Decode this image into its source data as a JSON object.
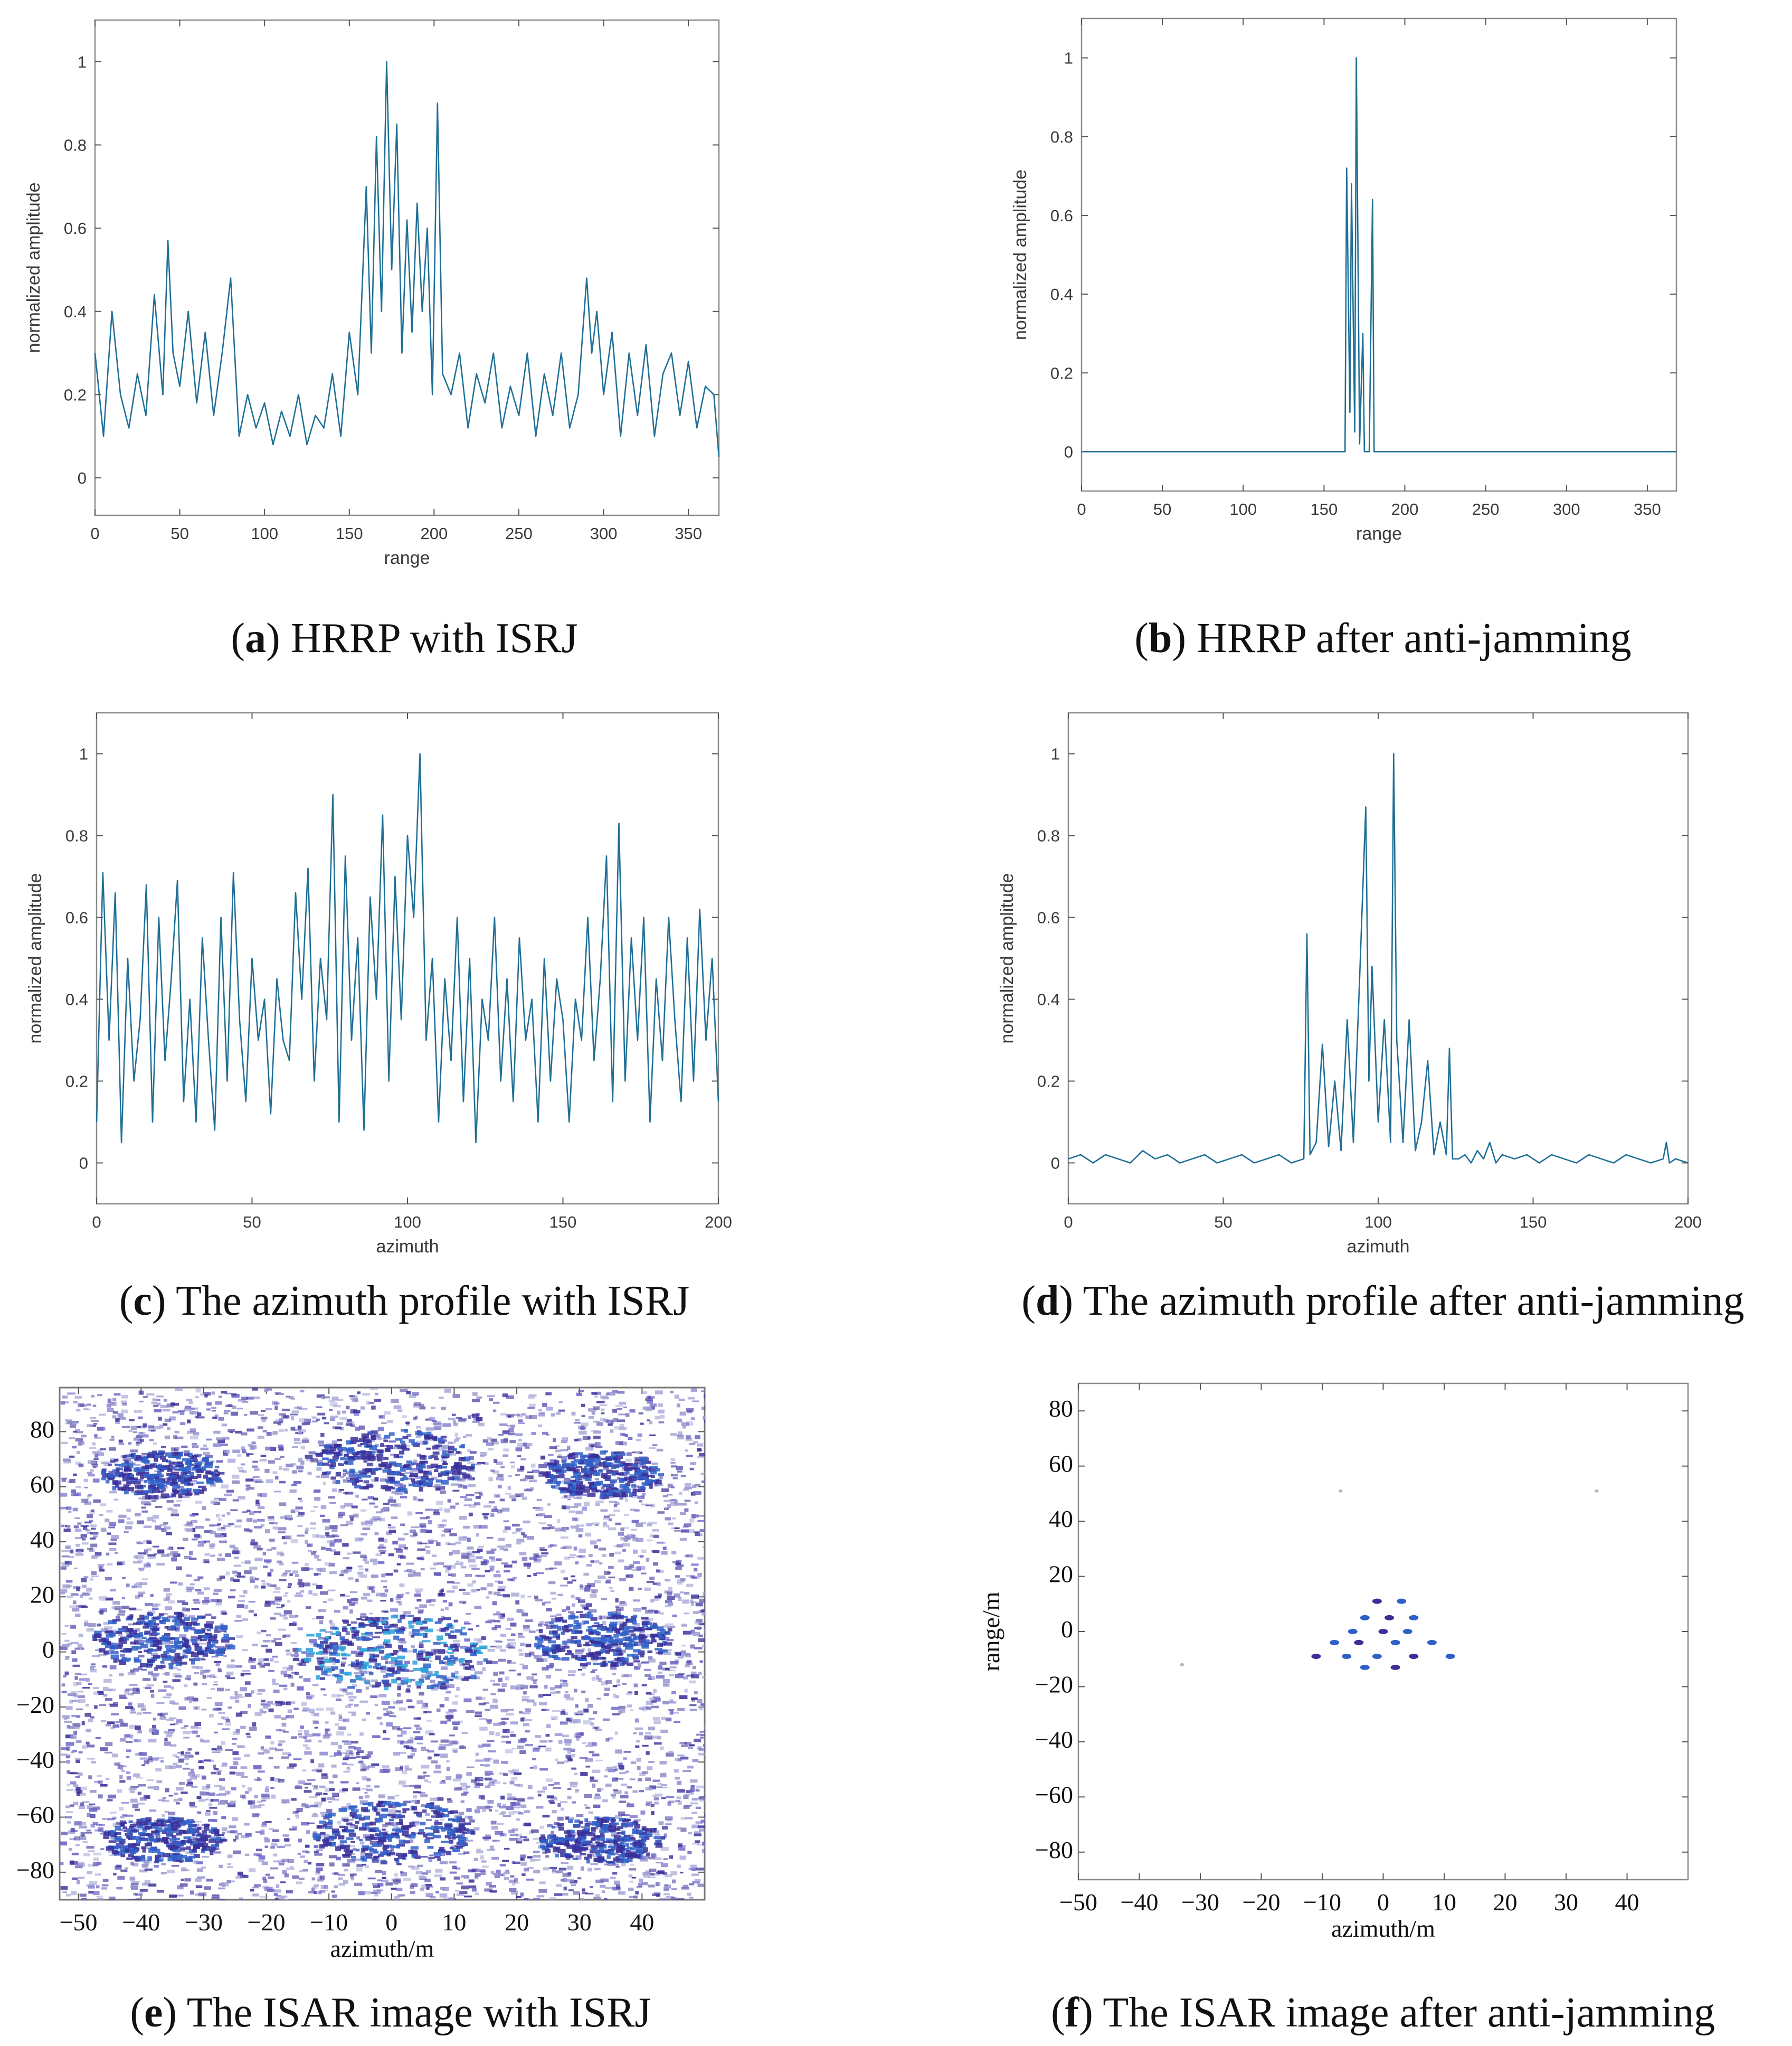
{
  "colors": {
    "line": "#1f6f96",
    "dot_dark": "#3a2f9a",
    "dot_mid": "#6a63c2",
    "dot_light": "#9a9bd0",
    "dot_cyan": "#2aa3d8",
    "dot_blue": "#2f60c8"
  },
  "captions": [
    {
      "letter": "a",
      "text": ") HRRP with ISRJ"
    },
    {
      "letter": "b",
      "text": ") HRRP after anti-jamming"
    },
    {
      "letter": "c",
      "text": ") The azimuth profile with ISRJ"
    },
    {
      "letter": "d",
      "text": ") The azimuth profile after anti-jamming"
    },
    {
      "letter": "e",
      "text": ") The ISAR image with ISRJ"
    },
    {
      "letter": "f",
      "text": ") The ISAR image after anti-jamming"
    }
  ],
  "chart_data": [
    {
      "id": "a",
      "type": "line",
      "xlabel": "range",
      "ylabel": "normalized amplitude",
      "xlim": [
        0,
        368
      ],
      "ylim": [
        -0.09,
        1.1
      ],
      "xticks": [
        "0",
        "50",
        "100",
        "150",
        "200",
        "250",
        "300",
        "350"
      ],
      "yticks": [
        "0",
        "0.2",
        "0.4",
        "0.6",
        "0.8",
        "1"
      ],
      "x": [
        0,
        5,
        10,
        15,
        20,
        25,
        30,
        35,
        40,
        43,
        46,
        50,
        55,
        60,
        65,
        70,
        75,
        80,
        85,
        90,
        95,
        100,
        105,
        110,
        115,
        120,
        125,
        130,
        135,
        140,
        145,
        150,
        155,
        160,
        163,
        166,
        169,
        172,
        175,
        178,
        181,
        184,
        187,
        190,
        193,
        196,
        199,
        202,
        205,
        210,
        215,
        220,
        225,
        230,
        235,
        240,
        245,
        250,
        255,
        260,
        265,
        270,
        275,
        280,
        285,
        290,
        293,
        296,
        300,
        305,
        310,
        315,
        320,
        325,
        330,
        335,
        340,
        345,
        350,
        355,
        360,
        365,
        368
      ],
      "y": [
        0.3,
        0.1,
        0.4,
        0.2,
        0.12,
        0.25,
        0.15,
        0.44,
        0.2,
        0.57,
        0.3,
        0.22,
        0.4,
        0.18,
        0.35,
        0.15,
        0.3,
        0.48,
        0.1,
        0.2,
        0.12,
        0.18,
        0.08,
        0.16,
        0.1,
        0.2,
        0.08,
        0.15,
        0.12,
        0.25,
        0.1,
        0.35,
        0.2,
        0.7,
        0.3,
        0.82,
        0.4,
        1.0,
        0.5,
        0.85,
        0.3,
        0.62,
        0.35,
        0.66,
        0.4,
        0.6,
        0.2,
        0.9,
        0.25,
        0.2,
        0.3,
        0.12,
        0.25,
        0.18,
        0.3,
        0.12,
        0.22,
        0.15,
        0.3,
        0.1,
        0.25,
        0.15,
        0.3,
        0.12,
        0.2,
        0.48,
        0.3,
        0.4,
        0.2,
        0.35,
        0.1,
        0.3,
        0.15,
        0.32,
        0.1,
        0.25,
        0.3,
        0.15,
        0.28,
        0.12,
        0.22,
        0.2,
        0.05
      ]
    },
    {
      "id": "b",
      "type": "line",
      "xlabel": "range",
      "ylabel": "normalized amplitude",
      "xlim": [
        0,
        368
      ],
      "ylim": [
        -0.1,
        1.1
      ],
      "xticks": [
        "0",
        "50",
        "100",
        "150",
        "200",
        "250",
        "300",
        "350"
      ],
      "yticks": [
        "0",
        "0.2",
        "0.4",
        "0.6",
        "0.8",
        "1"
      ],
      "x": [
        0,
        163,
        164,
        166,
        167,
        169,
        170,
        172,
        174,
        175,
        178,
        180,
        181,
        182,
        368
      ],
      "y": [
        0,
        0,
        0.72,
        0.1,
        0.68,
        0.05,
        1.0,
        0.02,
        0.3,
        0,
        0,
        0.64,
        0,
        0,
        0
      ]
    },
    {
      "id": "c",
      "type": "line",
      "xlabel": "azimuth",
      "ylabel": "normalized amplitude",
      "xlim": [
        0,
        200
      ],
      "ylim": [
        -0.1,
        1.1
      ],
      "xticks": [
        "0",
        "50",
        "100",
        "150",
        "200"
      ],
      "yticks": [
        "0",
        "0.2",
        "0.4",
        "0.6",
        "0.8",
        "1"
      ],
      "x": [
        0,
        2,
        4,
        6,
        8,
        10,
        12,
        14,
        16,
        18,
        20,
        22,
        24,
        26,
        28,
        30,
        32,
        34,
        36,
        38,
        40,
        42,
        44,
        46,
        48,
        50,
        52,
        54,
        56,
        58,
        60,
        62,
        64,
        66,
        68,
        70,
        72,
        74,
        76,
        78,
        80,
        82,
        84,
        86,
        88,
        90,
        92,
        94,
        96,
        98,
        100,
        102,
        104,
        106,
        108,
        110,
        112,
        114,
        116,
        118,
        120,
        122,
        124,
        126,
        128,
        130,
        132,
        134,
        136,
        138,
        140,
        142,
        144,
        146,
        148,
        150,
        152,
        154,
        156,
        158,
        160,
        162,
        164,
        166,
        168,
        170,
        172,
        174,
        176,
        178,
        180,
        182,
        184,
        186,
        188,
        190,
        192,
        194,
        196,
        198,
        200
      ],
      "y": [
        0.1,
        0.71,
        0.3,
        0.66,
        0.05,
        0.5,
        0.2,
        0.35,
        0.68,
        0.1,
        0.6,
        0.25,
        0.45,
        0.69,
        0.15,
        0.4,
        0.1,
        0.55,
        0.3,
        0.08,
        0.6,
        0.2,
        0.71,
        0.35,
        0.15,
        0.5,
        0.3,
        0.4,
        0.12,
        0.45,
        0.3,
        0.25,
        0.66,
        0.4,
        0.72,
        0.2,
        0.5,
        0.35,
        0.9,
        0.1,
        0.75,
        0.3,
        0.55,
        0.08,
        0.65,
        0.4,
        0.85,
        0.2,
        0.7,
        0.35,
        0.8,
        0.6,
        1.0,
        0.3,
        0.5,
        0.1,
        0.45,
        0.25,
        0.6,
        0.15,
        0.5,
        0.05,
        0.4,
        0.3,
        0.6,
        0.2,
        0.45,
        0.15,
        0.55,
        0.3,
        0.4,
        0.1,
        0.5,
        0.2,
        0.45,
        0.35,
        0.1,
        0.4,
        0.3,
        0.6,
        0.25,
        0.45,
        0.75,
        0.15,
        0.83,
        0.2,
        0.55,
        0.3,
        0.6,
        0.1,
        0.45,
        0.25,
        0.6,
        0.35,
        0.15,
        0.55,
        0.2,
        0.62,
        0.3,
        0.5,
        0.15
      ]
    },
    {
      "id": "d",
      "type": "line",
      "xlabel": "azimuth",
      "ylabel": "normalized amplitude",
      "xlim": [
        0,
        200
      ],
      "ylim": [
        -0.1,
        1.1
      ],
      "xticks": [
        "0",
        "50",
        "100",
        "150",
        "200"
      ],
      "yticks": [
        "0",
        "0.2",
        "0.4",
        "0.6",
        "0.8",
        "1"
      ],
      "x": [
        0,
        4,
        8,
        12,
        16,
        20,
        24,
        28,
        32,
        36,
        40,
        44,
        48,
        52,
        56,
        60,
        64,
        68,
        72,
        76,
        77,
        78,
        80,
        82,
        84,
        86,
        88,
        90,
        92,
        94,
        96,
        97,
        98,
        100,
        102,
        104,
        105,
        106,
        108,
        110,
        112,
        114,
        116,
        118,
        120,
        122,
        123,
        124,
        126,
        128,
        130,
        132,
        134,
        136,
        138,
        140,
        144,
        148,
        152,
        156,
        160,
        164,
        168,
        172,
        176,
        180,
        184,
        188,
        192,
        193,
        194,
        196,
        200
      ],
      "y": [
        0.01,
        0.02,
        0.0,
        0.02,
        0.01,
        0.0,
        0.03,
        0.01,
        0.02,
        0.0,
        0.01,
        0.02,
        0.0,
        0.01,
        0.02,
        0.0,
        0.01,
        0.02,
        0.0,
        0.01,
        0.56,
        0.02,
        0.05,
        0.29,
        0.04,
        0.2,
        0.03,
        0.35,
        0.05,
        0.45,
        0.87,
        0.2,
        0.48,
        0.1,
        0.35,
        0.05,
        1.0,
        0.3,
        0.05,
        0.35,
        0.03,
        0.1,
        0.25,
        0.02,
        0.1,
        0.02,
        0.28,
        0.01,
        0.01,
        0.02,
        0.0,
        0.03,
        0.01,
        0.05,
        0.0,
        0.02,
        0.01,
        0.02,
        0.0,
        0.02,
        0.01,
        0.0,
        0.02,
        0.01,
        0.0,
        0.02,
        0.01,
        0.0,
        0.01,
        0.05,
        0.0,
        0.01,
        0.0
      ]
    },
    {
      "id": "e",
      "type": "scatter",
      "xlabel": "azimuth/m",
      "ylabel": "",
      "xlim": [
        -53,
        50
      ],
      "ylim": [
        -90,
        96
      ],
      "xticks": [
        "−50",
        "−40",
        "−30",
        "−20",
        "−10",
        "0",
        "10",
        "20",
        "30",
        "40"
      ],
      "yticks": [
        "80",
        "60",
        "40",
        "20",
        "0",
        "−20",
        "−40",
        "−60",
        "−80"
      ],
      "clusters": [
        {
          "x": 0,
          "y": 0,
          "r": 10
        },
        {
          "x": -37,
          "y": 5,
          "r": 7
        },
        {
          "x": 33,
          "y": 5,
          "r": 7
        },
        {
          "x": 0,
          "y": 70,
          "r": 8
        },
        {
          "x": -37,
          "y": 65,
          "r": 6
        },
        {
          "x": 33,
          "y": 65,
          "r": 6
        },
        {
          "x": 0,
          "y": -65,
          "r": 8
        },
        {
          "x": -37,
          "y": -68,
          "r": 6
        },
        {
          "x": 33,
          "y": -68,
          "r": 6
        }
      ]
    },
    {
      "id": "f",
      "type": "scatter",
      "xlabel": "azimuth/m",
      "ylabel": "range/m",
      "xlim": [
        -50,
        50
      ],
      "ylim": [
        -90,
        90
      ],
      "xticks": [
        "−50",
        "−40",
        "−30",
        "−20",
        "−10",
        "0",
        "10",
        "20",
        "30",
        "40"
      ],
      "yticks": [
        "80",
        "60",
        "40",
        "20",
        "0",
        "−20",
        "−40",
        "−60",
        "−80"
      ],
      "points": [
        {
          "x": -1,
          "y": 11
        },
        {
          "x": 3,
          "y": 11
        },
        {
          "x": -3,
          "y": 5
        },
        {
          "x": 1,
          "y": 5
        },
        {
          "x": 5,
          "y": 5
        },
        {
          "x": -5,
          "y": 0
        },
        {
          "x": 0,
          "y": 0
        },
        {
          "x": 4,
          "y": 0
        },
        {
          "x": -8,
          "y": -4
        },
        {
          "x": -4,
          "y": -4
        },
        {
          "x": 2,
          "y": -4
        },
        {
          "x": 8,
          "y": -4
        },
        {
          "x": -11,
          "y": -9
        },
        {
          "x": -6,
          "y": -9
        },
        {
          "x": -1,
          "y": -9
        },
        {
          "x": 5,
          "y": -9
        },
        {
          "x": 11,
          "y": -9
        },
        {
          "x": -3,
          "y": -13
        },
        {
          "x": 2,
          "y": -13
        },
        {
          "x": -33,
          "y": -12
        },
        {
          "x": -7,
          "y": 51
        },
        {
          "x": 35,
          "y": 51
        }
      ]
    }
  ]
}
